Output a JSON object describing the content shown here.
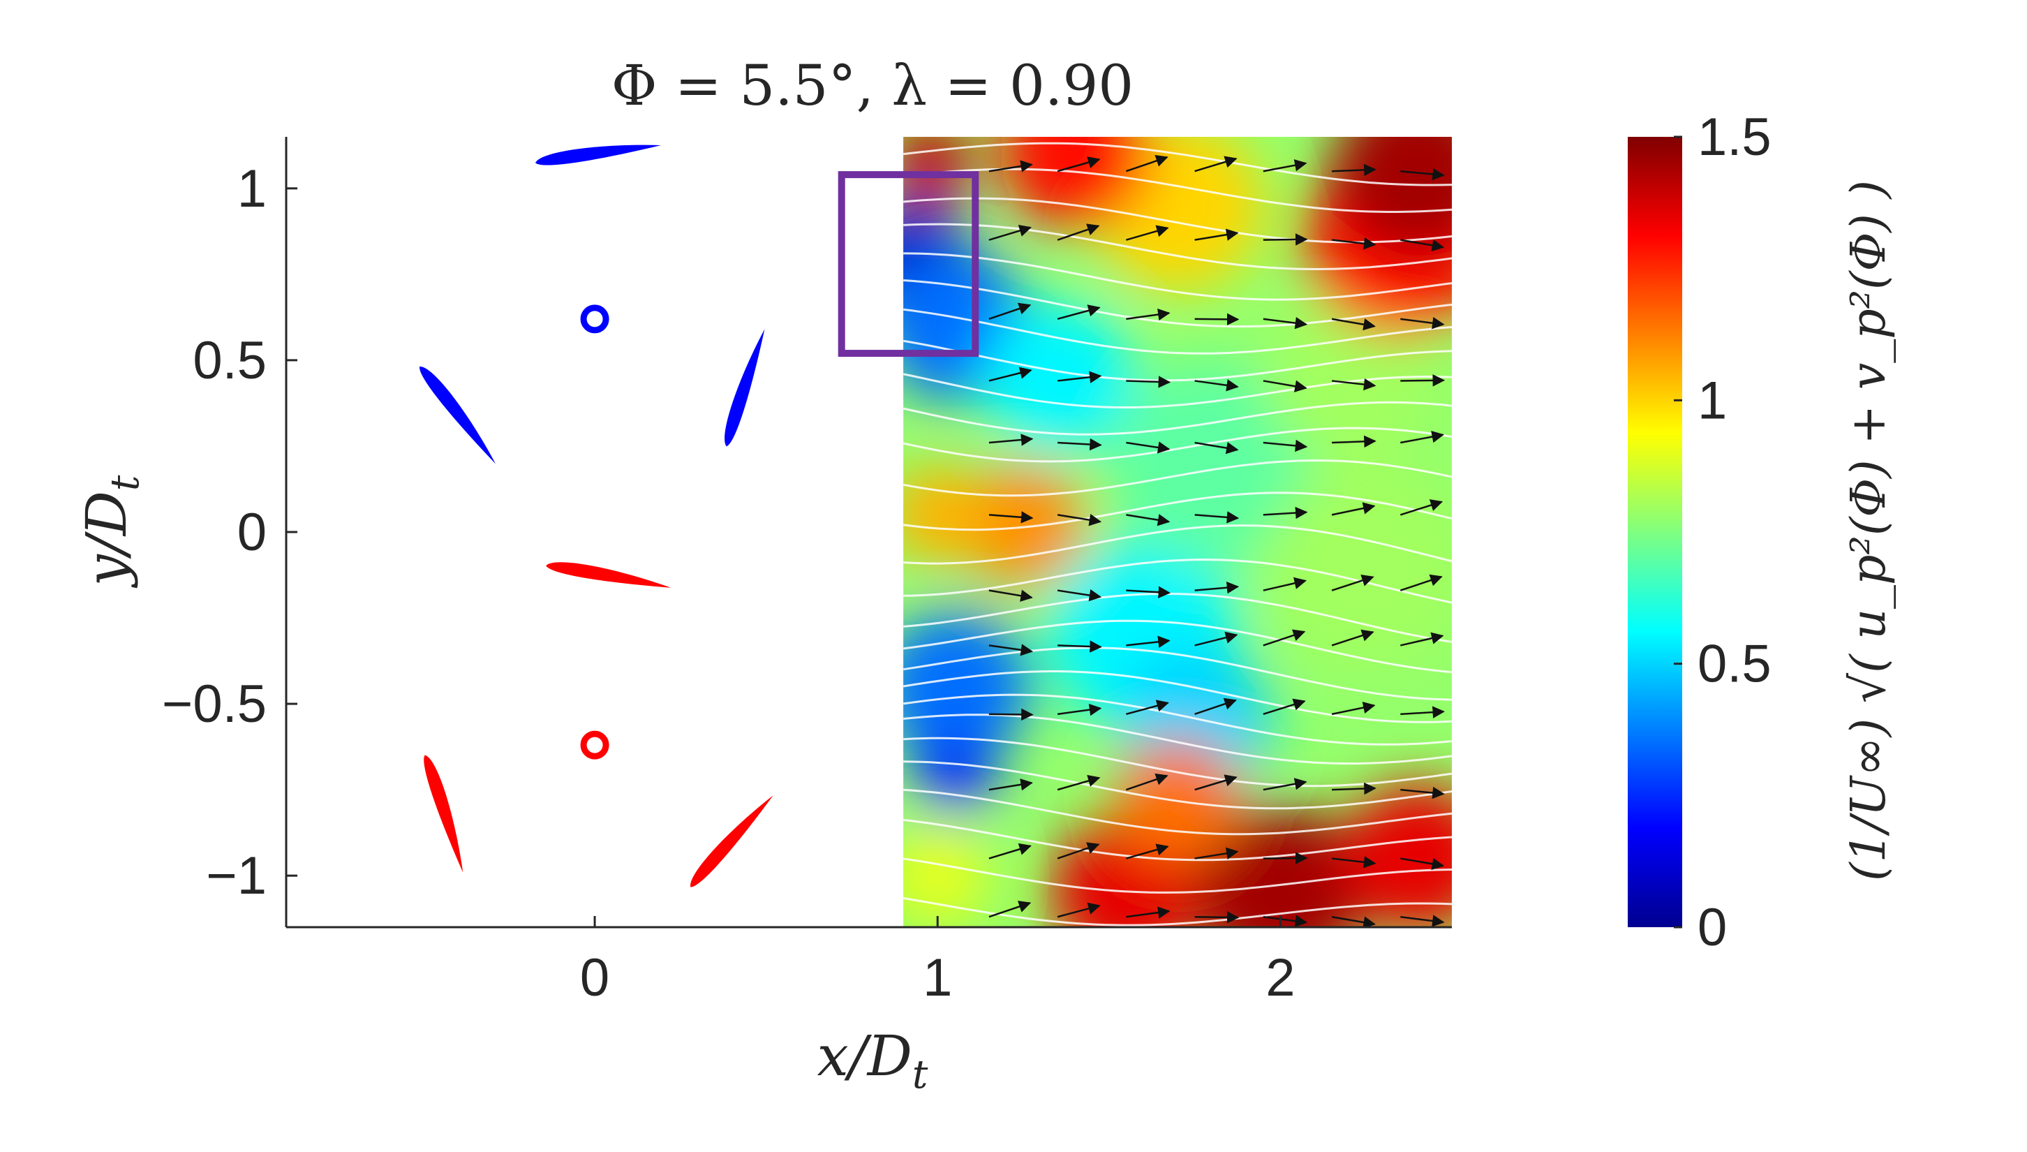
{
  "chart_data": {
    "type": "heatmap",
    "title": "Φ = 5.5°, λ = 0.90",
    "xlabel": "x/D",
    "xlabel_sub": "t",
    "ylabel": "y/D",
    "ylabel_sub": "t",
    "xlim": [
      -0.9,
      2.5
    ],
    "ylim": [
      -1.15,
      1.15
    ],
    "x_ticks": [
      0,
      1,
      2
    ],
    "x_tick_labels": [
      "0",
      "1",
      "2"
    ],
    "y_ticks": [
      -1,
      -0.5,
      0,
      0.5,
      1
    ],
    "y_tick_labels": [
      "−1",
      "−0.5",
      "0",
      "0.5",
      "1"
    ],
    "grid": false,
    "field_extent": {
      "x": [
        0.9,
        2.5
      ],
      "y": [
        -1.15,
        1.15
      ]
    },
    "colorbar": {
      "colormap": "jet",
      "range": [
        0,
        1.5
      ],
      "ticks": [
        0,
        0.5,
        1,
        1.5
      ],
      "tick_labels": [
        "0",
        "0.5",
        "1",
        "1.5"
      ],
      "label": "(1/U∞) √( u_p²(Φ) + v_p²(Φ) )"
    },
    "highlight_box": {
      "x": [
        0.72,
        1.11
      ],
      "y": [
        0.52,
        1.04
      ],
      "color": "#7030a0"
    },
    "hubs": [
      {
        "x": 0,
        "y": 0.62,
        "color": "#0000ff"
      },
      {
        "x": 0,
        "y": -0.62,
        "color": "#ff0000"
      }
    ],
    "blades": [
      {
        "x": 0.01,
        "y": 1.1,
        "angle_deg": 8,
        "length": 0.37,
        "color": "#0000ff"
      },
      {
        "x": -0.4,
        "y": 0.34,
        "angle_deg": -52,
        "length": 0.36,
        "color": "#0000ff"
      },
      {
        "x": 0.44,
        "y": 0.42,
        "angle_deg": 72,
        "length": 0.36,
        "color": "#0000ff"
      },
      {
        "x": 0.04,
        "y": -0.13,
        "angle_deg": -10,
        "length": 0.37,
        "color": "#ff0000"
      },
      {
        "x": -0.44,
        "y": -0.82,
        "angle_deg": -72,
        "length": 0.36,
        "color": "#ff0000"
      },
      {
        "x": 0.4,
        "y": -0.9,
        "angle_deg": 48,
        "length": 0.36,
        "color": "#ff0000"
      }
    ],
    "velocity_blobs": [
      {
        "x": 0.93,
        "y": 0.78,
        "r": 0.18,
        "v": 0.1
      },
      {
        "x": 1.05,
        "y": 0.6,
        "r": 0.22,
        "v": 0.35
      },
      {
        "x": 1.35,
        "y": 0.45,
        "r": 0.22,
        "v": 0.55
      },
      {
        "x": 1.25,
        "y": 0.02,
        "r": 0.18,
        "v": 1.1
      },
      {
        "x": 1.0,
        "y": 0.05,
        "r": 0.14,
        "v": 1.05
      },
      {
        "x": 1.05,
        "y": -0.45,
        "r": 0.22,
        "v": 0.35
      },
      {
        "x": 1.05,
        "y": -0.7,
        "r": 0.12,
        "v": 0.25
      },
      {
        "x": 1.6,
        "y": -0.3,
        "r": 0.28,
        "v": 0.55
      },
      {
        "x": 1.75,
        "y": -0.55,
        "r": 0.22,
        "v": 0.5
      },
      {
        "x": 1.8,
        "y": 0.2,
        "r": 0.3,
        "v": 0.7
      },
      {
        "x": 2.25,
        "y": -0.1,
        "r": 0.3,
        "v": 0.8
      },
      {
        "x": 2.2,
        "y": 0.45,
        "r": 0.25,
        "v": 0.8
      },
      {
        "x": 1.7,
        "y": 0.95,
        "r": 0.25,
        "v": 1.0
      },
      {
        "x": 2.35,
        "y": 0.85,
        "r": 0.28,
        "v": 1.3
      },
      {
        "x": 2.4,
        "y": 1.05,
        "r": 0.25,
        "v": 1.45
      },
      {
        "x": 1.4,
        "y": 1.1,
        "r": 0.22,
        "v": 1.3
      },
      {
        "x": 0.98,
        "y": 1.08,
        "r": 0.12,
        "v": 1.4
      },
      {
        "x": 1.55,
        "y": -1.05,
        "r": 0.22,
        "v": 1.35
      },
      {
        "x": 2.0,
        "y": -1.05,
        "r": 0.25,
        "v": 1.45
      },
      {
        "x": 2.4,
        "y": -0.95,
        "r": 0.22,
        "v": 1.35
      },
      {
        "x": 1.7,
        "y": -0.78,
        "r": 0.18,
        "v": 1.15
      },
      {
        "x": 1.0,
        "y": -1.0,
        "r": 0.15,
        "v": 0.9
      }
    ],
    "streamlines_y": [
      1.1,
      1.02,
      0.93,
      0.85,
      0.76,
      0.68,
      0.6,
      0.52,
      0.44,
      0.36,
      0.28,
      0.18,
      0.08,
      -0.02,
      -0.12,
      -0.22,
      -0.3,
      -0.38,
      -0.45,
      -0.52,
      -0.58,
      -0.65,
      -0.72,
      -0.8,
      -0.88,
      -0.98,
      -1.08
    ],
    "vector_rows_y": [
      1.05,
      0.85,
      0.62,
      0.44,
      0.26,
      0.05,
      -0.17,
      -0.33,
      -0.53,
      -0.75,
      -0.95,
      -1.12
    ],
    "vector_cols_x": [
      1.15,
      1.35,
      1.55,
      1.75,
      1.95,
      2.15,
      2.35
    ]
  }
}
